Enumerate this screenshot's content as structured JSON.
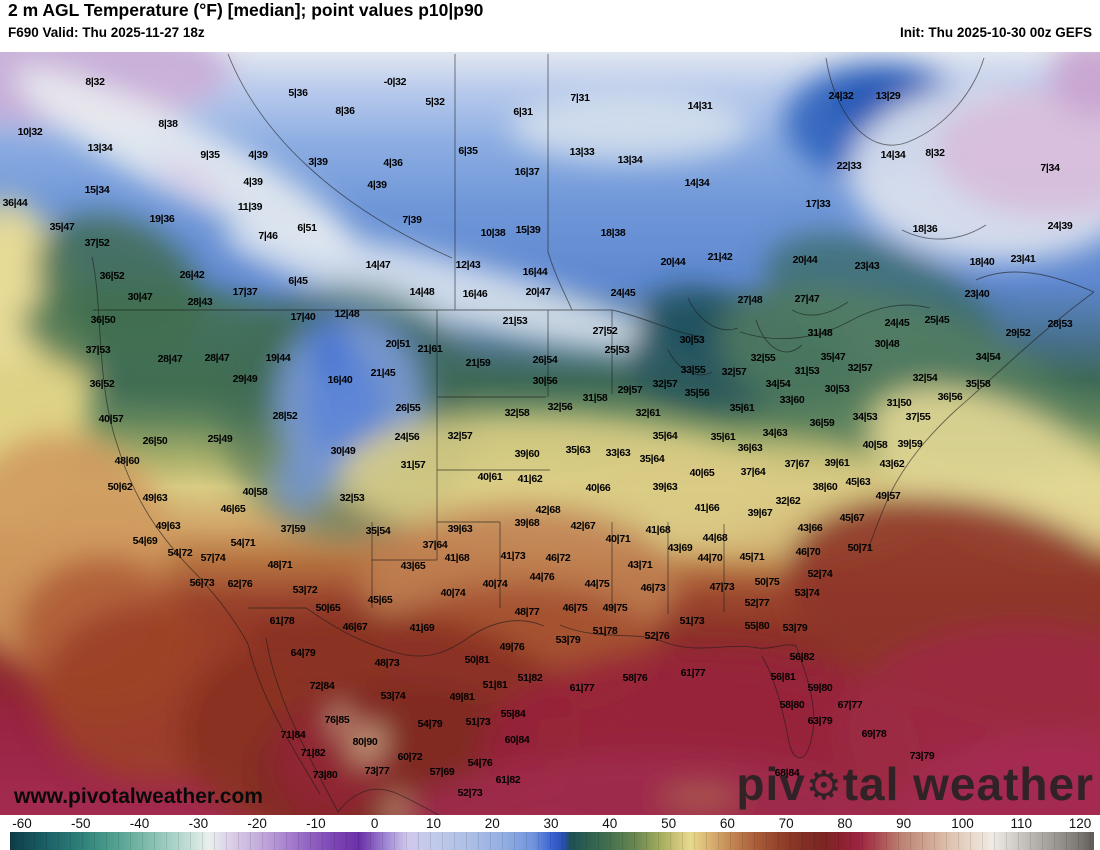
{
  "header": {
    "title": "2 m AGL Temperature (°F) [median]; point values p10|p90",
    "valid": "F690 Valid: Thu 2025-11-27 18z",
    "init": "Init: Thu 2025-10-30 00z GEFS"
  },
  "watermark": {
    "site": "www.pivotalweather.com",
    "brand_pre": "piv",
    "brand_post": "tal weather",
    "gear_icon": "⚙"
  },
  "colorbar": {
    "min": -60,
    "max": 120,
    "ticks": [
      -60,
      -50,
      -40,
      -30,
      -20,
      -10,
      0,
      10,
      20,
      30,
      40,
      50,
      60,
      70,
      80,
      90,
      100,
      110,
      120
    ],
    "stops": [
      [
        -60,
        "#0e3c46"
      ],
      [
        -54,
        "#1b6066"
      ],
      [
        -48,
        "#2f8279"
      ],
      [
        -42,
        "#57a393"
      ],
      [
        -36,
        "#8ac2b4"
      ],
      [
        -30,
        "#c6e0d8"
      ],
      [
        -27,
        "#e9f0ec"
      ],
      [
        -24,
        "#ded4ea"
      ],
      [
        -18,
        "#c1a7db"
      ],
      [
        -12,
        "#9b6fc8"
      ],
      [
        -6,
        "#7b44b4"
      ],
      [
        -2,
        "#6c30a8"
      ],
      [
        2,
        "#9a7fd0"
      ],
      [
        6,
        "#cfc8ec"
      ],
      [
        10,
        "#c2cbea"
      ],
      [
        16,
        "#aebfe6"
      ],
      [
        22,
        "#93aee2"
      ],
      [
        27,
        "#6f93dc"
      ],
      [
        30,
        "#3a62d2"
      ],
      [
        32,
        "#2750b0"
      ],
      [
        33,
        "#1d5056"
      ],
      [
        36,
        "#2e6050"
      ],
      [
        40,
        "#47734f"
      ],
      [
        44,
        "#6c8852"
      ],
      [
        48,
        "#a3ad5e"
      ],
      [
        51,
        "#d2c67a"
      ],
      [
        53,
        "#e6da8c"
      ],
      [
        56,
        "#dab573"
      ],
      [
        60,
        "#c28452"
      ],
      [
        64,
        "#a85c38"
      ],
      [
        68,
        "#92402a"
      ],
      [
        72,
        "#822e24"
      ],
      [
        75,
        "#7c2522"
      ],
      [
        78,
        "#8c2130"
      ],
      [
        81,
        "#9d2442"
      ],
      [
        84,
        "#aa4a50"
      ],
      [
        88,
        "#bd8273"
      ],
      [
        92,
        "#cda28e"
      ],
      [
        96,
        "#dfc2ae"
      ],
      [
        100,
        "#e9dacc"
      ],
      [
        103,
        "#eeeae4"
      ],
      [
        106,
        "#d8d4cf"
      ],
      [
        110,
        "#b7b3af"
      ],
      [
        114,
        "#989490"
      ],
      [
        118,
        "#787470"
      ],
      [
        120,
        "#5e5b58"
      ]
    ]
  },
  "map": {
    "points": [
      [
        "8|32",
        95,
        82
      ],
      [
        "10|32",
        30,
        132
      ],
      [
        "13|34",
        100,
        148
      ],
      [
        "15|34",
        97,
        190
      ],
      [
        "36|44",
        15,
        203
      ],
      [
        "35|47",
        62,
        227
      ],
      [
        "37|52",
        97,
        243
      ],
      [
        "8|38",
        168,
        124
      ],
      [
        "9|35",
        210,
        155
      ],
      [
        "4|39",
        258,
        155
      ],
      [
        "4|39",
        253,
        182
      ],
      [
        "11|39",
        250,
        207
      ],
      [
        "19|36",
        162,
        219
      ],
      [
        "7|46",
        268,
        236
      ],
      [
        "26|42",
        192,
        275
      ],
      [
        "36|52",
        112,
        276
      ],
      [
        "30|47",
        140,
        297
      ],
      [
        "28|43",
        200,
        302
      ],
      [
        "17|37",
        245,
        292
      ],
      [
        "5|36",
        298,
        93
      ],
      [
        "-0|32",
        395,
        82
      ],
      [
        "5|32",
        435,
        102
      ],
      [
        "8|36",
        345,
        111
      ],
      [
        "6|31",
        523,
        112
      ],
      [
        "6|35",
        468,
        151
      ],
      [
        "16|37",
        527,
        172
      ],
      [
        "3|39",
        318,
        162
      ],
      [
        "4|36",
        393,
        163
      ],
      [
        "4|39",
        377,
        185
      ],
      [
        "7|39",
        412,
        220
      ],
      [
        "6|51",
        307,
        228
      ],
      [
        "10|38",
        493,
        233
      ],
      [
        "15|39",
        528,
        230
      ],
      [
        "14|47",
        378,
        265
      ],
      [
        "12|43",
        468,
        265
      ],
      [
        "6|45",
        298,
        281
      ],
      [
        "14|48",
        422,
        292
      ],
      [
        "16|46",
        475,
        294
      ],
      [
        "16|44",
        535,
        272
      ],
      [
        "20|47",
        538,
        292
      ],
      [
        "7|31",
        580,
        98
      ],
      [
        "14|31",
        700,
        106
      ],
      [
        "13|33",
        582,
        152
      ],
      [
        "13|34",
        630,
        160
      ],
      [
        "14|34",
        697,
        183
      ],
      [
        "18|38",
        613,
        233
      ],
      [
        "20|44",
        673,
        262
      ],
      [
        "21|42",
        720,
        257
      ],
      [
        "20|44",
        805,
        260
      ],
      [
        "24|45",
        623,
        293
      ],
      [
        "27|48",
        750,
        300
      ],
      [
        "27|47",
        807,
        299
      ],
      [
        "24|32",
        841,
        96
      ],
      [
        "13|29",
        888,
        96
      ],
      [
        "14|34",
        893,
        155
      ],
      [
        "8|32",
        935,
        153
      ],
      [
        "7|34",
        1050,
        168
      ],
      [
        "22|33",
        849,
        166
      ],
      [
        "17|33",
        818,
        204
      ],
      [
        "18|36",
        925,
        229
      ],
      [
        "24|39",
        1060,
        226
      ],
      [
        "23|43",
        867,
        266
      ],
      [
        "18|40",
        982,
        262
      ],
      [
        "23|41",
        1023,
        259
      ],
      [
        "23|40",
        977,
        294
      ],
      [
        "36|50",
        103,
        320
      ],
      [
        "37|53",
        98,
        350
      ],
      [
        "36|52",
        102,
        384
      ],
      [
        "28|47",
        170,
        359
      ],
      [
        "28|47",
        217,
        358
      ],
      [
        "29|49",
        245,
        379
      ],
      [
        "40|57",
        111,
        419
      ],
      [
        "26|50",
        155,
        441
      ],
      [
        "25|49",
        220,
        439
      ],
      [
        "48|60",
        127,
        461
      ],
      [
        "50|62",
        120,
        487
      ],
      [
        "49|63",
        155,
        498
      ],
      [
        "40|58",
        255,
        492
      ],
      [
        "46|65",
        233,
        509
      ],
      [
        "49|63",
        168,
        526
      ],
      [
        "54|69",
        145,
        541
      ],
      [
        "54|72",
        180,
        553
      ],
      [
        "57|74",
        213,
        558
      ],
      [
        "54|71",
        243,
        543
      ],
      [
        "17|40",
        303,
        317
      ],
      [
        "12|48",
        347,
        314
      ],
      [
        "20|51",
        398,
        344
      ],
      [
        "21|61",
        430,
        349
      ],
      [
        "21|53",
        515,
        321
      ],
      [
        "21|59",
        478,
        363
      ],
      [
        "26|54",
        545,
        360
      ],
      [
        "30|56",
        545,
        381
      ],
      [
        "19|44",
        278,
        358
      ],
      [
        "16|40",
        340,
        380
      ],
      [
        "21|45",
        383,
        373
      ],
      [
        "26|55",
        408,
        408
      ],
      [
        "28|52",
        285,
        416
      ],
      [
        "32|58",
        517,
        413
      ],
      [
        "24|56",
        407,
        437
      ],
      [
        "32|57",
        460,
        436
      ],
      [
        "30|49",
        343,
        451
      ],
      [
        "31|57",
        413,
        465
      ],
      [
        "39|60",
        527,
        454
      ],
      [
        "40|61",
        490,
        477
      ],
      [
        "41|62",
        530,
        479
      ],
      [
        "32|53",
        352,
        498
      ],
      [
        "37|59",
        293,
        529
      ],
      [
        "35|54",
        378,
        531
      ],
      [
        "39|63",
        460,
        529
      ],
      [
        "39|68",
        527,
        523
      ],
      [
        "37|64",
        435,
        545
      ],
      [
        "41|68",
        457,
        558
      ],
      [
        "41|73",
        513,
        556
      ],
      [
        "27|52",
        605,
        331
      ],
      [
        "25|53",
        617,
        350
      ],
      [
        "30|53",
        692,
        340
      ],
      [
        "32|55",
        763,
        358
      ],
      [
        "31|53",
        807,
        371
      ],
      [
        "33|55",
        693,
        370
      ],
      [
        "32|57",
        734,
        372
      ],
      [
        "34|54",
        778,
        384
      ],
      [
        "32|57",
        665,
        384
      ],
      [
        "35|56",
        697,
        393
      ],
      [
        "33|60",
        792,
        400
      ],
      [
        "29|57",
        630,
        390
      ],
      [
        "31|58",
        595,
        398
      ],
      [
        "32|56",
        560,
        407
      ],
      [
        "35|61",
        742,
        408
      ],
      [
        "32|61",
        648,
        413
      ],
      [
        "35|64",
        665,
        436
      ],
      [
        "35|61",
        723,
        437
      ],
      [
        "34|63",
        775,
        433
      ],
      [
        "36|63",
        750,
        448
      ],
      [
        "35|63",
        578,
        450
      ],
      [
        "33|63",
        618,
        453
      ],
      [
        "35|64",
        652,
        459
      ],
      [
        "37|64",
        753,
        472
      ],
      [
        "37|67",
        797,
        464
      ],
      [
        "40|65",
        702,
        473
      ],
      [
        "40|66",
        598,
        488
      ],
      [
        "39|63",
        665,
        487
      ],
      [
        "32|62",
        788,
        501
      ],
      [
        "42|68",
        548,
        510
      ],
      [
        "42|67",
        583,
        526
      ],
      [
        "39|67",
        760,
        513
      ],
      [
        "41|66",
        707,
        508
      ],
      [
        "41|68",
        658,
        530
      ],
      [
        "40|71",
        618,
        539
      ],
      [
        "43|69",
        680,
        548
      ],
      [
        "44|68",
        715,
        538
      ],
      [
        "44|70",
        710,
        558
      ],
      [
        "45|71",
        752,
        557
      ],
      [
        "46|70",
        808,
        552
      ],
      [
        "43|66",
        810,
        528
      ],
      [
        "46|72",
        558,
        558
      ],
      [
        "31|48",
        820,
        333
      ],
      [
        "24|45",
        897,
        323
      ],
      [
        "25|45",
        937,
        320
      ],
      [
        "28|53",
        1060,
        324
      ],
      [
        "29|52",
        1018,
        333
      ],
      [
        "30|48",
        887,
        344
      ],
      [
        "35|47",
        833,
        357
      ],
      [
        "32|57",
        860,
        368
      ],
      [
        "34|54",
        988,
        357
      ],
      [
        "32|54",
        925,
        378
      ],
      [
        "35|58",
        978,
        384
      ],
      [
        "30|53",
        837,
        389
      ],
      [
        "36|56",
        950,
        397
      ],
      [
        "31|50",
        899,
        403
      ],
      [
        "34|53",
        865,
        417
      ],
      [
        "36|59",
        822,
        423
      ],
      [
        "37|55",
        918,
        417
      ],
      [
        "40|58",
        875,
        445
      ],
      [
        "39|59",
        910,
        444
      ],
      [
        "39|61",
        837,
        463
      ],
      [
        "43|62",
        892,
        464
      ],
      [
        "45|63",
        858,
        482
      ],
      [
        "38|60",
        825,
        487
      ],
      [
        "49|57",
        888,
        496
      ],
      [
        "45|67",
        852,
        518
      ],
      [
        "50|71",
        860,
        548
      ],
      [
        "56|73",
        202,
        583
      ],
      [
        "62|76",
        240,
        584
      ],
      [
        "48|71",
        280,
        565
      ],
      [
        "43|65",
        413,
        566
      ],
      [
        "53|72",
        305,
        590
      ],
      [
        "45|65",
        380,
        600
      ],
      [
        "50|65",
        328,
        608
      ],
      [
        "40|74",
        453,
        593
      ],
      [
        "40|74",
        495,
        584
      ],
      [
        "48|77",
        527,
        612
      ],
      [
        "61|78",
        282,
        621
      ],
      [
        "46|67",
        355,
        627
      ],
      [
        "41|69",
        422,
        628
      ],
      [
        "64|79",
        303,
        653
      ],
      [
        "49|76",
        512,
        647
      ],
      [
        "48|73",
        387,
        663
      ],
      [
        "50|81",
        477,
        660
      ],
      [
        "72|84",
        322,
        686
      ],
      [
        "51|81",
        495,
        685
      ],
      [
        "51|82",
        530,
        678
      ],
      [
        "53|74",
        393,
        696
      ],
      [
        "49|81",
        462,
        697
      ],
      [
        "76|85",
        337,
        720
      ],
      [
        "55|84",
        513,
        714
      ],
      [
        "54|79",
        430,
        724
      ],
      [
        "51|73",
        478,
        722
      ],
      [
        "71|84",
        293,
        735
      ],
      [
        "80|90",
        365,
        742
      ],
      [
        "60|84",
        517,
        740
      ],
      [
        "71|82",
        313,
        753
      ],
      [
        "60|72",
        410,
        757
      ],
      [
        "54|76",
        480,
        763
      ],
      [
        "73|80",
        325,
        775
      ],
      [
        "73|77",
        377,
        771
      ],
      [
        "57|69",
        442,
        772
      ],
      [
        "61|82",
        508,
        780
      ],
      [
        "52|73",
        470,
        793
      ],
      [
        "43|71",
        640,
        565
      ],
      [
        "44|76",
        542,
        577
      ],
      [
        "44|75",
        597,
        584
      ],
      [
        "46|73",
        653,
        588
      ],
      [
        "47|73",
        722,
        587
      ],
      [
        "50|75",
        767,
        582
      ],
      [
        "52|74",
        820,
        574
      ],
      [
        "53|74",
        807,
        593
      ],
      [
        "46|75",
        575,
        608
      ],
      [
        "49|75",
        615,
        608
      ],
      [
        "52|77",
        757,
        603
      ],
      [
        "51|73",
        692,
        621
      ],
      [
        "55|80",
        757,
        626
      ],
      [
        "53|79",
        795,
        628
      ],
      [
        "51|78",
        605,
        631
      ],
      [
        "53|79",
        568,
        640
      ],
      [
        "52|76",
        657,
        636
      ],
      [
        "56|82",
        802,
        657
      ],
      [
        "58|76",
        635,
        678
      ],
      [
        "61|77",
        693,
        673
      ],
      [
        "56|81",
        783,
        677
      ],
      [
        "61|77",
        582,
        688
      ],
      [
        "58|80",
        792,
        705
      ],
      [
        "68|84",
        787,
        773
      ],
      [
        "67|77",
        850,
        705
      ],
      [
        "69|78",
        874,
        734
      ],
      [
        "73|79",
        922,
        756
      ],
      [
        "59|80",
        820,
        688
      ],
      [
        "63|79",
        820,
        721
      ]
    ]
  }
}
